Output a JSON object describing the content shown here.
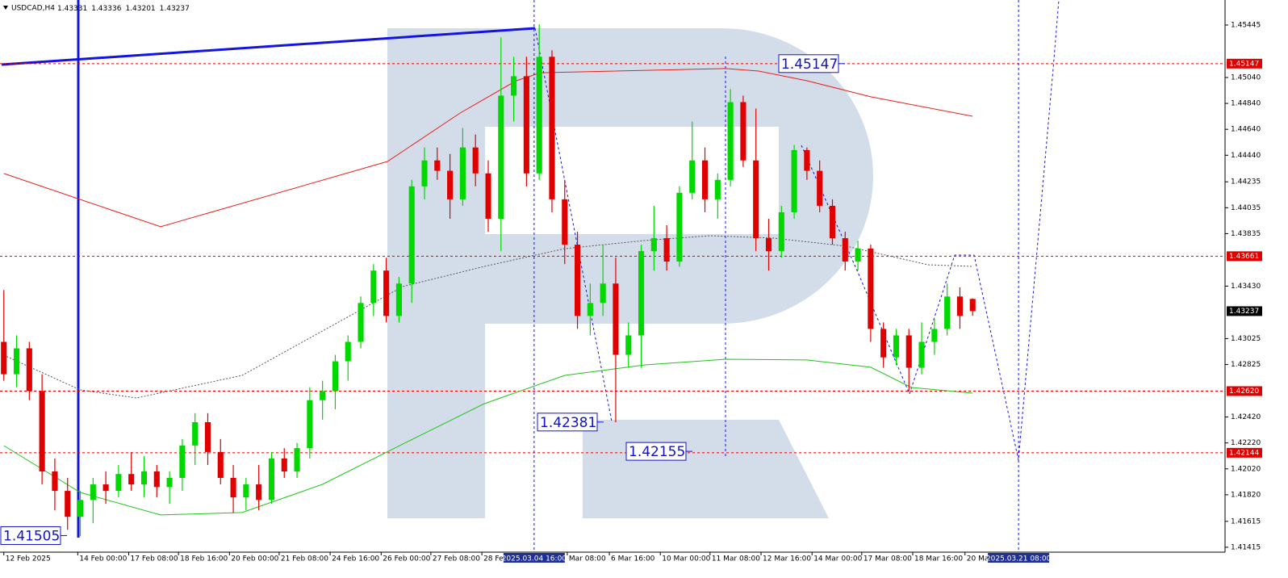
{
  "chart_data": {
    "type": "candlestick",
    "title": "USDCAD,H4",
    "header_values": [
      1.43331,
      1.43336,
      1.43201,
      1.43237
    ],
    "up_color": "#00d800",
    "down_color": "#e00000",
    "x": [
      0,
      1,
      2,
      3,
      4,
      5,
      6,
      7,
      8,
      9,
      10,
      11,
      12,
      13,
      14,
      15,
      16,
      17,
      18,
      19,
      20,
      21,
      22,
      23,
      24,
      25,
      26,
      27,
      28,
      29,
      30,
      31,
      32,
      33,
      34,
      35,
      36,
      37,
      38,
      39,
      40,
      41,
      42,
      43,
      44,
      45,
      46,
      47,
      48,
      49,
      50,
      51,
      52,
      53,
      54,
      55,
      56,
      57,
      58,
      59,
      60,
      61,
      62,
      63,
      64,
      65,
      66,
      67,
      68,
      69,
      70,
      71,
      72,
      73,
      74,
      75,
      76
    ],
    "open": [
      1.43,
      1.4275,
      1.4295,
      1.4262,
      1.42,
      1.4185,
      1.4165,
      1.4178,
      1.419,
      1.4185,
      1.4198,
      1.419,
      1.42,
      1.4188,
      1.4195,
      1.422,
      1.4238,
      1.4215,
      1.4195,
      1.418,
      1.419,
      1.4178,
      1.421,
      1.42,
      1.4218,
      1.4255,
      1.4262,
      1.4285,
      1.43,
      1.433,
      1.4355,
      1.432,
      1.4345,
      1.442,
      1.444,
      1.4432,
      1.441,
      1.445,
      1.443,
      1.4395,
      1.449,
      1.4505,
      1.443,
      1.452,
      1.441,
      1.4375,
      1.432,
      1.433,
      1.4345,
      1.429,
      1.4305,
      1.437,
      1.438,
      1.4362,
      1.4415,
      1.444,
      1.441,
      1.4425,
      1.4485,
      1.444,
      1.438,
      1.437,
      1.44,
      1.4448,
      1.4432,
      1.4405,
      1.438,
      1.4362,
      1.4372,
      1.431,
      1.4288,
      1.4305,
      1.428,
      1.43,
      1.431,
      1.4335,
      1.43331
    ],
    "high": [
      1.434,
      1.4305,
      1.43,
      1.4275,
      1.421,
      1.4195,
      1.4185,
      1.4195,
      1.42,
      1.4205,
      1.4215,
      1.4212,
      1.4205,
      1.42,
      1.4225,
      1.4245,
      1.4245,
      1.4225,
      1.4205,
      1.4195,
      1.4205,
      1.4215,
      1.4218,
      1.4222,
      1.4265,
      1.427,
      1.429,
      1.4305,
      1.4335,
      1.436,
      1.4365,
      1.435,
      1.4425,
      1.445,
      1.445,
      1.4445,
      1.4465,
      1.446,
      1.444,
      1.4535,
      1.452,
      1.452,
      1.4545,
      1.4525,
      1.4425,
      1.4385,
      1.4345,
      1.4375,
      1.4365,
      1.4315,
      1.4375,
      1.4405,
      1.439,
      1.442,
      1.447,
      1.445,
      1.443,
      1.4495,
      1.449,
      1.448,
      1.4395,
      1.4405,
      1.4452,
      1.445,
      1.444,
      1.441,
      1.4385,
      1.4378,
      1.4375,
      1.4315,
      1.431,
      1.431,
      1.4315,
      1.4318,
      1.4345,
      1.4342,
      1.43336
    ],
    "low": [
      1.427,
      1.4265,
      1.4255,
      1.419,
      1.417,
      1.4155,
      1.415,
      1.416,
      1.4175,
      1.418,
      1.4185,
      1.418,
      1.418,
      1.4175,
      1.4185,
      1.4205,
      1.4205,
      1.419,
      1.4168,
      1.417,
      1.417,
      1.4175,
      1.4195,
      1.4195,
      1.421,
      1.424,
      1.4248,
      1.427,
      1.4295,
      1.432,
      1.4315,
      1.4315,
      1.433,
      1.441,
      1.4425,
      1.4395,
      1.4405,
      1.442,
      1.4385,
      1.437,
      1.447,
      1.442,
      1.4425,
      1.44,
      1.436,
      1.431,
      1.4305,
      1.432,
      1.4238,
      1.428,
      1.428,
      1.4355,
      1.4355,
      1.4358,
      1.441,
      1.44,
      1.4395,
      1.442,
      1.4435,
      1.437,
      1.4355,
      1.4365,
      1.4395,
      1.4425,
      1.44,
      1.4375,
      1.4355,
      1.4355,
      1.43,
      1.428,
      1.4282,
      1.4262,
      1.4275,
      1.429,
      1.4305,
      1.431,
      1.43201
    ],
    "close": [
      1.4275,
      1.4295,
      1.4262,
      1.42,
      1.4185,
      1.4165,
      1.4178,
      1.419,
      1.4185,
      1.4198,
      1.419,
      1.42,
      1.4188,
      1.4195,
      1.422,
      1.4238,
      1.4215,
      1.4195,
      1.418,
      1.419,
      1.4178,
      1.421,
      1.42,
      1.4218,
      1.4255,
      1.4262,
      1.4285,
      1.43,
      1.433,
      1.4355,
      1.432,
      1.4345,
      1.442,
      1.444,
      1.4432,
      1.441,
      1.445,
      1.443,
      1.4395,
      1.449,
      1.4505,
      1.443,
      1.452,
      1.441,
      1.4375,
      1.432,
      1.433,
      1.4345,
      1.429,
      1.4305,
      1.437,
      1.438,
      1.4362,
      1.4415,
      1.444,
      1.441,
      1.4425,
      1.4485,
      1.444,
      1.438,
      1.437,
      1.44,
      1.4448,
      1.4432,
      1.4405,
      1.438,
      1.4362,
      1.4372,
      1.431,
      1.4288,
      1.4305,
      1.428,
      1.43,
      1.431,
      1.4335,
      1.432,
      1.43237
    ],
    "series": [
      {
        "color": "#e8201c",
        "style": "solid",
        "x": [
          0,
          12.3,
          30.1,
          35.8,
          40.2,
          42.1,
          56.6,
          59.2,
          63,
          68,
          76
        ],
        "values": [
          1.44299,
          1.43888,
          1.44392,
          1.44766,
          1.45015,
          1.45077,
          1.45109,
          1.4509,
          1.45015,
          1.44891,
          1.44741
        ]
      },
      {
        "color": "#22c41c",
        "style": "solid",
        "x": [
          0,
          6,
          12.3,
          18.7,
          25,
          31.3,
          37.7,
          44,
          50.3,
          56.6,
          63,
          68,
          71.2,
          76
        ],
        "values": [
          1.42199,
          1.41838,
          1.41664,
          1.41683,
          1.419,
          1.42211,
          1.42523,
          1.42741,
          1.42822,
          1.42866,
          1.4286,
          1.42804,
          1.42648,
          1.42604
        ]
      },
      {
        "color": "#555555",
        "style": "dotted",
        "x": [
          0,
          6,
          10.4,
          18.7,
          25,
          31.3,
          37.7,
          44,
          50.3,
          55.4,
          60.4,
          66.1,
          72.5,
          76
        ],
        "values": [
          1.42897,
          1.42629,
          1.42567,
          1.42741,
          1.43084,
          1.43427,
          1.43582,
          1.43719,
          1.43782,
          1.43819,
          1.438,
          1.43738,
          1.43595,
          1.43582
        ]
      }
    ],
    "price_levels": [
      1.45147,
      1.43661,
      {
        "value": 1.4262,
        "label": "1.42620"
      },
      1.42144
    ],
    "level_color": "#e00000",
    "current_price": 1.43237,
    "annotations": [
      1.45147,
      1.42381,
      1.42155,
      1.41505
    ],
    "crosshair_labels": [
      {
        "value": 41.6,
        "label": "2025.03.04 16:00"
      },
      {
        "value": 79.6,
        "label": "2025.03.21 08:00"
      }
    ],
    "xlim": [
      -0.3,
      95.8
    ],
    "ylim": [
      1.41377,
      1.45638
    ],
    "xticks": [
      {
        "value": 0,
        "label": "12 Feb 2025"
      },
      {
        "value": 5.8,
        "label": "14 Feb 00:00"
      },
      {
        "value": 9.8,
        "label": "17 Feb 08:00"
      },
      {
        "value": 13.7,
        "label": "18 Feb 16:00"
      },
      {
        "value": 17.7,
        "label": "20 Feb 00:00"
      },
      {
        "value": 21.6,
        "label": "21 Feb 08:00"
      },
      {
        "value": 25.6,
        "label": "24 Feb 16:00"
      },
      {
        "value": 29.6,
        "label": "26 Feb 00:00"
      },
      {
        "value": 33.5,
        "label": "27 Feb 08:00"
      },
      {
        "value": 37.5,
        "label": "28 Feb 16:00"
      },
      {
        "value": 44.2,
        "label": "Mar 08:00"
      },
      {
        "value": 47.5,
        "label": "6 Mar 16:00"
      },
      {
        "value": 51.5,
        "label": "10 Mar 00:00"
      },
      {
        "value": 55.4,
        "label": "11 Mar 08:00"
      },
      {
        "value": 59.4,
        "label": "12 Mar 16:00"
      },
      {
        "value": 63.4,
        "label": "14 Mar 00:00"
      },
      {
        "value": 67.3,
        "label": "17 Mar 08:00"
      },
      {
        "value": 71.3,
        "label": "18 Mar 16:00"
      },
      {
        "value": 75.4,
        "label": "20 Ma"
      }
    ],
    "yticks": [
      1.45445,
      {
        "value": 1.4504,
        "label": "1.45040"
      },
      {
        "value": 1.4484,
        "label": "1.44840"
      },
      {
        "value": 1.4464,
        "label": "1.44640"
      },
      {
        "value": 1.4444,
        "label": "1.44440"
      },
      1.44235,
      1.44035,
      1.43835,
      {
        "value": 1.4343,
        "label": "1.43430"
      },
      1.43025,
      1.42825,
      {
        "value": 1.4242,
        "label": "1.42420"
      },
      {
        "value": 1.4222,
        "label": "1.42220"
      },
      {
        "value": 1.4202,
        "label": "1.42020"
      },
      {
        "value": 1.4182,
        "label": "1.41820"
      },
      1.41615,
      1.41415
    ],
    "grid": false
  }
}
